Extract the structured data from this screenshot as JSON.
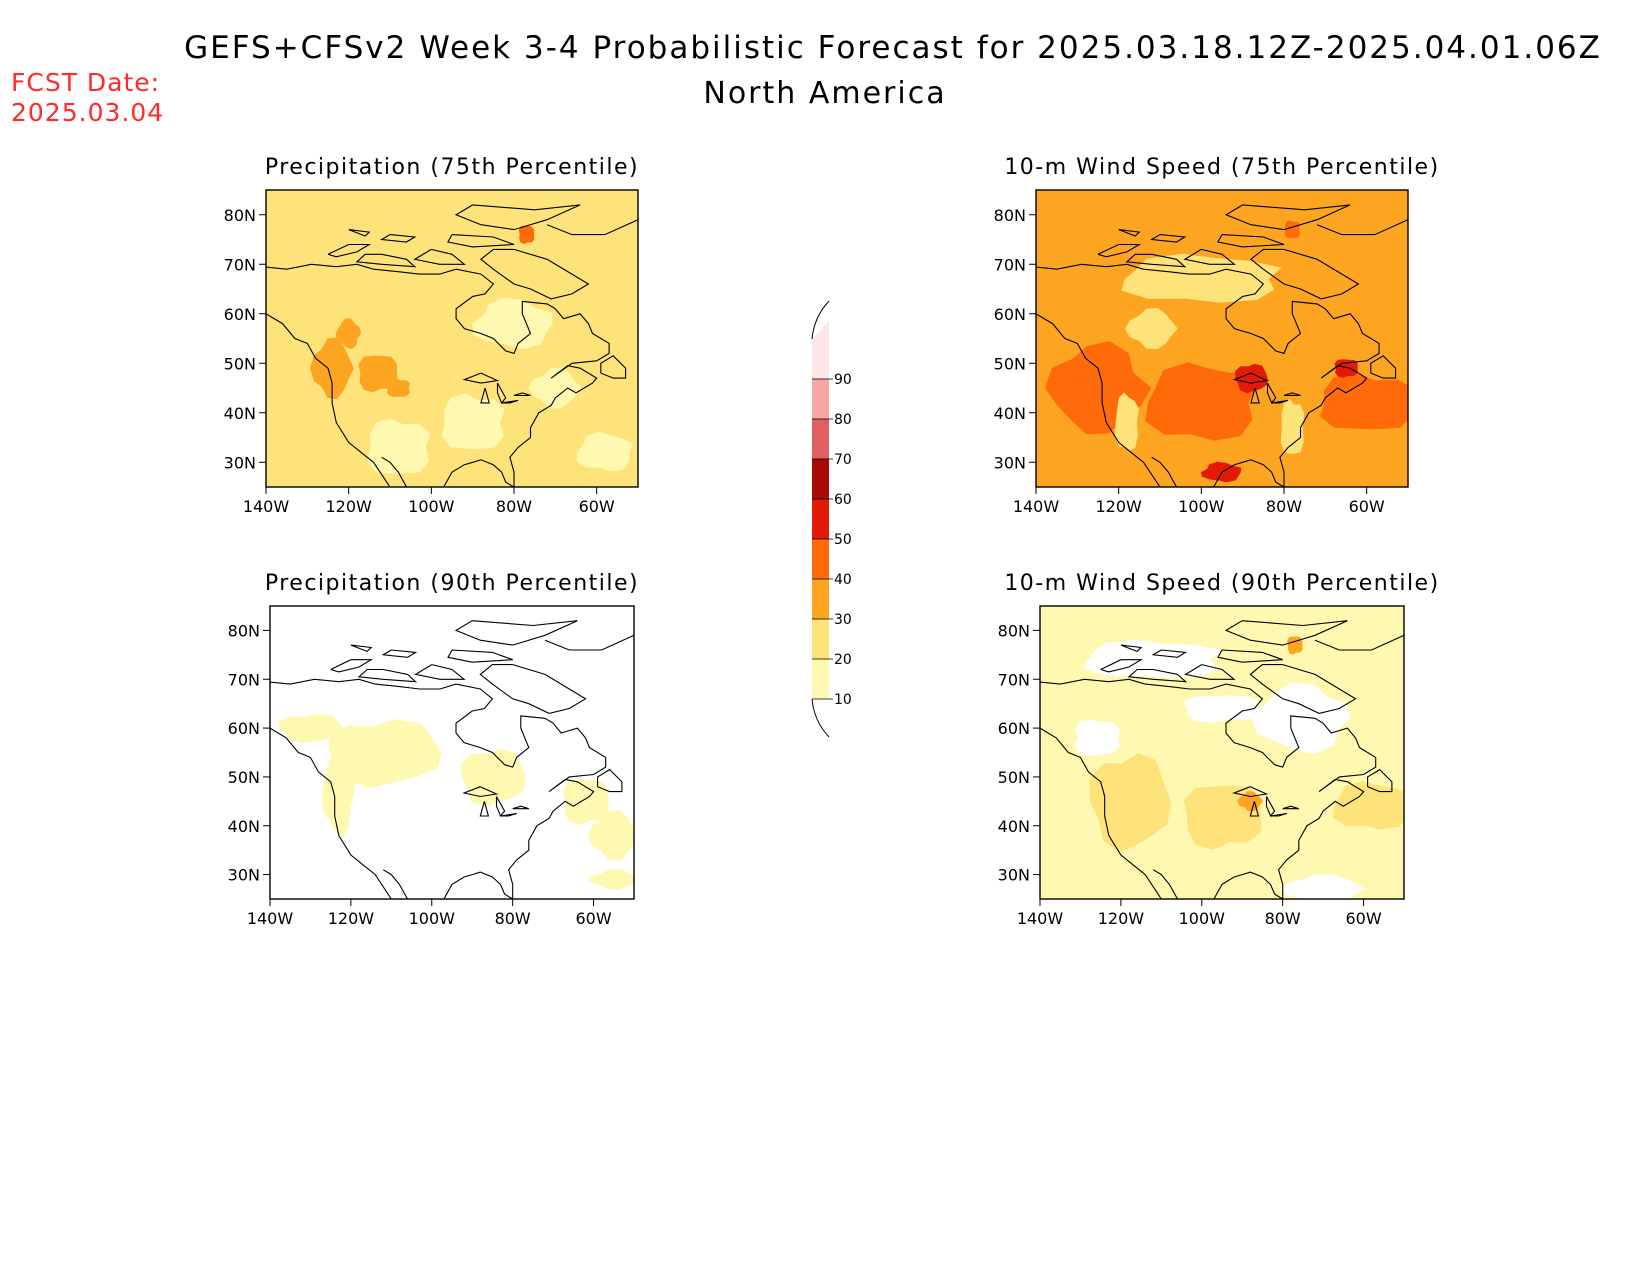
{
  "header": {
    "title_line1": "GEFS+CFSv2 Week 3-4 Probabilistic Forecast for 2025.03.18.12Z-2025.04.01.06Z",
    "title_line2": "North America",
    "fcst_label": "FCST Date:",
    "fcst_value": "2025.03.04"
  },
  "panels": [
    {
      "id": "precip75",
      "title": "Precipitation (75th Percentile)",
      "base_class": 1,
      "blobs": [
        {
          "lon": -120,
          "lat": 56,
          "rlon": 3,
          "rlat": 3,
          "class": 2
        },
        {
          "lon": -124,
          "lat": 49,
          "rlon": 5,
          "rlat": 6,
          "class": 2
        },
        {
          "lon": -113,
          "lat": 48,
          "rlon": 5,
          "rlat": 4,
          "class": 2
        },
        {
          "lon": -108,
          "lat": 45,
          "rlon": 3,
          "rlat": 2,
          "class": 2
        },
        {
          "lon": -77,
          "lat": 76,
          "rlon": 2,
          "rlat": 2,
          "class": 3
        },
        {
          "lon": -108,
          "lat": 33,
          "rlon": 8,
          "rlat": 6,
          "class": 0
        },
        {
          "lon": -90,
          "lat": 38,
          "rlon": 8,
          "rlat": 6,
          "class": 0
        },
        {
          "lon": -80,
          "lat": 58,
          "rlon": 10,
          "rlat": 5,
          "class": 0
        },
        {
          "lon": -58,
          "lat": 32,
          "rlon": 7,
          "rlat": 4,
          "class": 0
        },
        {
          "lon": -70,
          "lat": 45,
          "rlon": 6,
          "rlat": 4,
          "class": 0
        }
      ]
    },
    {
      "id": "wind75",
      "title": "10-m Wind Speed (75th Percentile)",
      "base_class": 2,
      "blobs": [
        {
          "lon": -125,
          "lat": 45,
          "rlon": 12,
          "rlat": 9,
          "class": 3
        },
        {
          "lon": -100,
          "lat": 42,
          "rlon": 14,
          "rlat": 8,
          "class": 3
        },
        {
          "lon": -60,
          "lat": 42,
          "rlon": 12,
          "rlat": 6,
          "class": 3
        },
        {
          "lon": -88,
          "lat": 47,
          "rlon": 4,
          "rlat": 3,
          "class": 4
        },
        {
          "lon": -65,
          "lat": 49,
          "rlon": 3,
          "rlat": 2,
          "class": 4
        },
        {
          "lon": -95,
          "lat": 28,
          "rlon": 5,
          "rlat": 2,
          "class": 4
        },
        {
          "lon": -100,
          "lat": 67,
          "rlon": 20,
          "rlat": 5,
          "class": 1
        },
        {
          "lon": -112,
          "lat": 57,
          "rlon": 6,
          "rlat": 4,
          "class": 1
        },
        {
          "lon": -78,
          "lat": 37,
          "rlon": 3,
          "rlat": 6,
          "class": 1
        },
        {
          "lon": -118,
          "lat": 38,
          "rlon": 3,
          "rlat": 6,
          "class": 1
        },
        {
          "lon": -78,
          "lat": 77,
          "rlon": 2,
          "rlat": 2,
          "class": 3
        }
      ]
    },
    {
      "id": "precip90",
      "title": "Precipitation (90th Percentile)",
      "base_class": -1,
      "blobs": [
        {
          "lon": -112,
          "lat": 55,
          "rlon": 14,
          "rlat": 7,
          "class": 0
        },
        {
          "lon": -123,
          "lat": 47,
          "rlon": 4,
          "rlat": 9,
          "class": 0
        },
        {
          "lon": -85,
          "lat": 50,
          "rlon": 8,
          "rlat": 6,
          "class": 0
        },
        {
          "lon": -62,
          "lat": 45,
          "rlon": 6,
          "rlat": 5,
          "class": 0
        },
        {
          "lon": -55,
          "lat": 38,
          "rlon": 6,
          "rlat": 5,
          "class": 0
        },
        {
          "lon": -130,
          "lat": 60,
          "rlon": 8,
          "rlat": 3,
          "class": 0
        },
        {
          "lon": -55,
          "lat": 29,
          "rlon": 6,
          "rlat": 2,
          "class": 0
        }
      ]
    },
    {
      "id": "wind90",
      "title": "10-m Wind Speed (90th Percentile)",
      "base_class": 0,
      "blobs": [
        {
          "lon": -75,
          "lat": 62,
          "rlon": 12,
          "rlat": 7,
          "class": -1
        },
        {
          "lon": -112,
          "lat": 74,
          "rlon": 18,
          "rlat": 4,
          "class": -1
        },
        {
          "lon": -95,
          "lat": 64,
          "rlon": 10,
          "rlat": 3,
          "class": -1
        },
        {
          "lon": -126,
          "lat": 58,
          "rlon": 6,
          "rlat": 4,
          "class": -1
        },
        {
          "lon": -118,
          "lat": 45,
          "rlon": 10,
          "rlat": 10,
          "class": 1
        },
        {
          "lon": -95,
          "lat": 42,
          "rlon": 10,
          "rlat": 7,
          "class": 1
        },
        {
          "lon": -58,
          "lat": 44,
          "rlon": 10,
          "rlat": 5,
          "class": 1
        },
        {
          "lon": -88,
          "lat": 45,
          "rlon": 3,
          "rlat": 2,
          "class": 2
        },
        {
          "lon": -70,
          "lat": 27,
          "rlon": 10,
          "rlat": 3,
          "class": -1
        },
        {
          "lon": -77,
          "lat": 77,
          "rlon": 2,
          "rlat": 2,
          "class": 2
        }
      ]
    }
  ],
  "axes": {
    "lon_ticks": [
      -140,
      -120,
      -100,
      -80,
      -60
    ],
    "lon_labels": [
      "140W",
      "120W",
      "100W",
      "80W",
      "60W"
    ],
    "lat_ticks": [
      30,
      40,
      50,
      60,
      70,
      80
    ],
    "lat_labels": [
      "30N",
      "40N",
      "50N",
      "60N",
      "70N",
      "80N"
    ],
    "lon_range": [
      -140,
      -50
    ],
    "lat_range": [
      25,
      85
    ]
  },
  "colorbar": {
    "levels": [
      "10",
      "20",
      "30",
      "40",
      "50",
      "60",
      "70",
      "80",
      "90"
    ],
    "colors": [
      "#fff8b0",
      "#fde37a",
      "#fda520",
      "#ff6a0a",
      "#e41a08",
      "#a80a05",
      "#e06060",
      "#f7a5a5",
      "#fde6e6"
    ]
  }
}
